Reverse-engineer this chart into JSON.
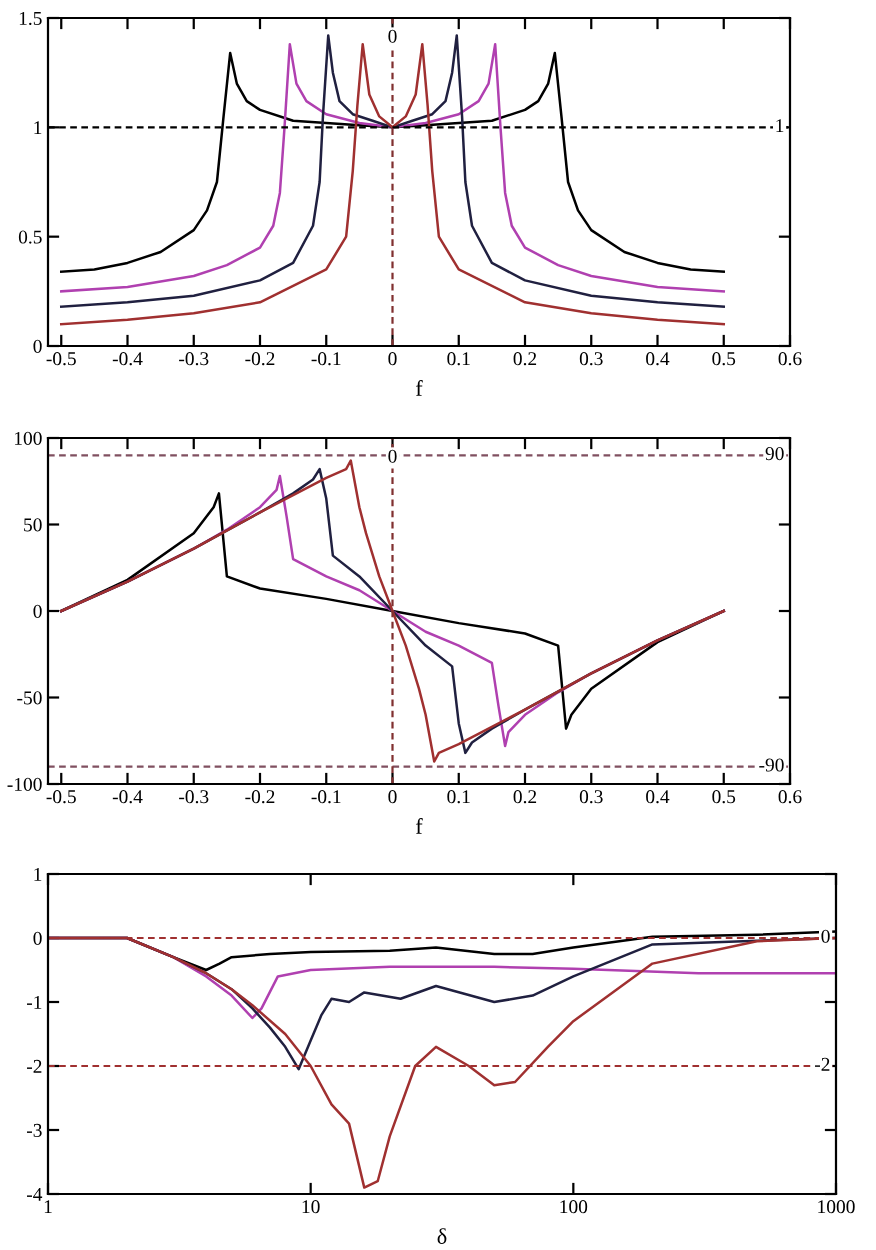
{
  "chart_data": [
    {
      "type": "line",
      "xlabel": "f",
      "xlim": [
        -0.52,
        0.6
      ],
      "ylim": [
        0,
        1.5
      ],
      "xticks": [
        -0.5,
        -0.4,
        -0.3,
        -0.2,
        -0.1,
        0,
        0.1,
        0.2,
        0.3,
        0.4,
        0.5,
        0.6
      ],
      "yticks": [
        0,
        0.5,
        1,
        1.5
      ],
      "ref_lines": [
        {
          "axis": "y",
          "value": 1,
          "label": "1",
          "color": "#000000",
          "line_style": "dashed"
        },
        {
          "axis": "x",
          "value": 0,
          "label": "0",
          "color": "#803030",
          "line_style": "dashed"
        }
      ],
      "series": [
        {
          "color": "#000000",
          "x": [
            -0.5,
            -0.45,
            -0.4,
            -0.35,
            -0.3,
            -0.28,
            -0.265,
            -0.255,
            -0.245,
            -0.235,
            -0.22,
            -0.2,
            -0.15,
            -0.1,
            -0.05,
            0,
            0.05,
            0.1,
            0.15,
            0.2,
            0.22,
            0.235,
            0.245,
            0.255,
            0.265,
            0.28,
            0.3,
            0.35,
            0.4,
            0.45,
            0.5
          ],
          "values": [
            0.34,
            0.35,
            0.38,
            0.43,
            0.53,
            0.62,
            0.75,
            1.05,
            1.34,
            1.2,
            1.12,
            1.08,
            1.03,
            1.02,
            1.01,
            1.0,
            1.01,
            1.02,
            1.03,
            1.08,
            1.12,
            1.2,
            1.34,
            1.05,
            0.75,
            0.62,
            0.53,
            0.43,
            0.38,
            0.35,
            0.34
          ]
        },
        {
          "color": "#b040b0",
          "x": [
            -0.5,
            -0.4,
            -0.3,
            -0.25,
            -0.2,
            -0.18,
            -0.17,
            -0.163,
            -0.155,
            -0.145,
            -0.13,
            -0.1,
            -0.05,
            0,
            0.05,
            0.1,
            0.13,
            0.145,
            0.155,
            0.163,
            0.17,
            0.18,
            0.2,
            0.25,
            0.3,
            0.4,
            0.5
          ],
          "values": [
            0.25,
            0.27,
            0.32,
            0.37,
            0.45,
            0.55,
            0.7,
            1.0,
            1.38,
            1.2,
            1.12,
            1.06,
            1.02,
            1.0,
            1.02,
            1.06,
            1.12,
            1.2,
            1.38,
            1.0,
            0.7,
            0.55,
            0.45,
            0.37,
            0.32,
            0.27,
            0.25
          ]
        },
        {
          "color": "#202040",
          "x": [
            -0.5,
            -0.4,
            -0.3,
            -0.2,
            -0.15,
            -0.12,
            -0.11,
            -0.105,
            -0.097,
            -0.09,
            -0.08,
            -0.06,
            -0.03,
            0,
            0.03,
            0.06,
            0.08,
            0.09,
            0.097,
            0.105,
            0.11,
            0.12,
            0.15,
            0.2,
            0.3,
            0.4,
            0.5
          ],
          "values": [
            0.18,
            0.2,
            0.23,
            0.3,
            0.38,
            0.55,
            0.75,
            1.05,
            1.42,
            1.25,
            1.12,
            1.06,
            1.03,
            1.0,
            1.03,
            1.06,
            1.12,
            1.25,
            1.42,
            1.05,
            0.75,
            0.55,
            0.38,
            0.3,
            0.23,
            0.2,
            0.18
          ]
        },
        {
          "color": "#a03030",
          "x": [
            -0.5,
            -0.4,
            -0.3,
            -0.2,
            -0.1,
            -0.07,
            -0.06,
            -0.053,
            -0.045,
            -0.035,
            -0.02,
            0,
            0.02,
            0.035,
            0.045,
            0.053,
            0.06,
            0.07,
            0.1,
            0.2,
            0.3,
            0.4,
            0.5
          ],
          "values": [
            0.1,
            0.12,
            0.15,
            0.2,
            0.35,
            0.5,
            0.8,
            1.1,
            1.38,
            1.15,
            1.05,
            1.0,
            1.05,
            1.15,
            1.38,
            1.1,
            0.8,
            0.5,
            0.35,
            0.2,
            0.15,
            0.12,
            0.1
          ]
        }
      ]
    },
    {
      "type": "line",
      "xlabel": "f",
      "xlim": [
        -0.52,
        0.6
      ],
      "ylim": [
        -100,
        100
      ],
      "xticks": [
        -0.5,
        -0.4,
        -0.3,
        -0.2,
        -0.1,
        0,
        0.1,
        0.2,
        0.3,
        0.4,
        0.5,
        0.6
      ],
      "yticks": [
        -100,
        -50,
        0,
        50,
        100
      ],
      "ref_lines": [
        {
          "axis": "y",
          "value": 90,
          "label": "90",
          "color": "#805060",
          "line_style": "dashed"
        },
        {
          "axis": "y",
          "value": -90,
          "label": "-90",
          "color": "#805060",
          "line_style": "dashed"
        },
        {
          "axis": "x",
          "value": 0,
          "label": "0",
          "color": "#803030",
          "line_style": "dashed"
        }
      ],
      "series": [
        {
          "color": "#000000",
          "x": [
            -0.5,
            -0.4,
            -0.3,
            -0.27,
            -0.262,
            -0.255,
            -0.25,
            -0.2,
            -0.1,
            0,
            0.1,
            0.2,
            0.25,
            0.255,
            0.262,
            0.27,
            0.3,
            0.4,
            0.5
          ],
          "values": [
            0,
            18,
            45,
            60,
            68,
            40,
            20,
            13,
            7,
            0,
            -7,
            -13,
            -20,
            -40,
            -68,
            -60,
            -45,
            -18,
            0
          ]
        },
        {
          "color": "#b040b0",
          "x": [
            -0.5,
            -0.4,
            -0.3,
            -0.25,
            -0.2,
            -0.175,
            -0.17,
            -0.16,
            -0.15,
            -0.1,
            -0.05,
            0,
            0.05,
            0.1,
            0.15,
            0.16,
            0.17,
            0.175,
            0.2,
            0.25,
            0.3,
            0.4,
            0.5
          ],
          "values": [
            0,
            17,
            36,
            47,
            60,
            70,
            78,
            55,
            30,
            20,
            12,
            0,
            -12,
            -20,
            -30,
            -55,
            -78,
            -70,
            -60,
            -47,
            -36,
            -17,
            0
          ]
        },
        {
          "color": "#202040",
          "x": [
            -0.5,
            -0.4,
            -0.3,
            -0.2,
            -0.15,
            -0.12,
            -0.11,
            -0.1,
            -0.09,
            -0.05,
            0,
            0.05,
            0.09,
            0.1,
            0.11,
            0.12,
            0.15,
            0.2,
            0.3,
            0.4,
            0.5
          ],
          "values": [
            0,
            17,
            36,
            57,
            68,
            76,
            82,
            65,
            32,
            20,
            0,
            -20,
            -32,
            -65,
            -82,
            -76,
            -68,
            -57,
            -36,
            -17,
            0
          ]
        },
        {
          "color": "#a03030",
          "x": [
            -0.5,
            -0.4,
            -0.3,
            -0.2,
            -0.1,
            -0.07,
            -0.063,
            -0.05,
            -0.04,
            -0.02,
            0,
            0.02,
            0.04,
            0.05,
            0.063,
            0.07,
            0.1,
            0.2,
            0.3,
            0.4,
            0.5
          ],
          "values": [
            0,
            17,
            36,
            57,
            77,
            82,
            87,
            60,
            45,
            20,
            0,
            -20,
            -45,
            -60,
            -87,
            -82,
            -77,
            -57,
            -36,
            -17,
            0
          ]
        }
      ]
    },
    {
      "type": "line",
      "xlabel": "δ",
      "log": "x",
      "xlim": [
        1,
        1000
      ],
      "ylim": [
        -4,
        1
      ],
      "xticks": [
        1,
        10,
        100,
        1000
      ],
      "yticks": [
        -4,
        -3,
        -2,
        -1,
        0,
        1
      ],
      "ref_lines": [
        {
          "axis": "y",
          "value": 0,
          "label": "0",
          "color": "#a03030",
          "line_style": "dashed"
        },
        {
          "axis": "y",
          "value": -2,
          "label": "-2",
          "color": "#a03030",
          "line_style": "dashed"
        }
      ],
      "series": [
        {
          "color": "#000000",
          "x": [
            1,
            2,
            3,
            4,
            4.5,
            5,
            7,
            10,
            20,
            30,
            50,
            70,
            100,
            200,
            500,
            1000
          ],
          "values": [
            0,
            0,
            -0.3,
            -0.5,
            -0.4,
            -0.3,
            -0.25,
            -0.22,
            -0.2,
            -0.15,
            -0.25,
            -0.25,
            -0.15,
            0.02,
            0.05,
            0.1
          ]
        },
        {
          "color": "#b040b0",
          "x": [
            1,
            2,
            3,
            4,
            5,
            6,
            6.5,
            7.5,
            10,
            20,
            50,
            100,
            300,
            1000
          ],
          "values": [
            0,
            0,
            -0.3,
            -0.6,
            -0.9,
            -1.25,
            -1.1,
            -0.6,
            -0.5,
            -0.45,
            -0.45,
            -0.48,
            -0.55,
            -0.55
          ]
        },
        {
          "color": "#202040",
          "x": [
            1,
            2,
            3,
            4,
            5,
            6,
            7,
            8,
            9,
            10,
            11,
            12,
            14,
            16,
            22,
            30,
            50,
            70,
            100,
            200,
            1000
          ],
          "values": [
            0,
            0,
            -0.3,
            -0.55,
            -0.8,
            -1.1,
            -1.4,
            -1.7,
            -2.05,
            -1.6,
            -1.2,
            -0.95,
            -1.0,
            -0.85,
            -0.95,
            -0.75,
            -1.0,
            -0.9,
            -0.6,
            -0.1,
            0
          ]
        },
        {
          "color": "#a03030",
          "x": [
            1,
            2,
            3,
            4,
            5,
            6,
            8,
            10,
            12,
            14,
            16,
            18,
            20,
            25,
            30,
            40,
            50,
            60,
            80,
            100,
            200,
            500,
            1000
          ],
          "values": [
            0,
            0,
            -0.3,
            -0.55,
            -0.8,
            -1.05,
            -1.5,
            -2.0,
            -2.6,
            -2.9,
            -3.9,
            -3.8,
            -3.1,
            -2.0,
            -1.7,
            -2.0,
            -2.3,
            -2.25,
            -1.7,
            -1.3,
            -0.4,
            -0.05,
            0
          ]
        }
      ]
    }
  ]
}
